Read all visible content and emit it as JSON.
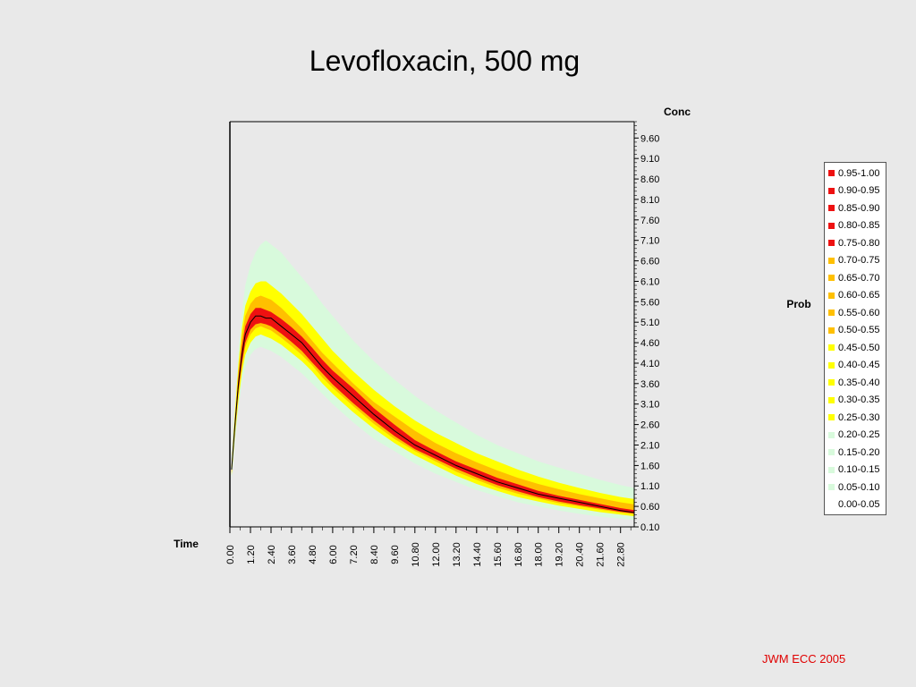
{
  "slide": {
    "title": "Levofloxacin, 500 mg",
    "credit": "JWM ECC 2005"
  },
  "colors": {
    "red": "#ee1111",
    "orange": "#ffc000",
    "yellow": "#ffff00",
    "pale_green": "#d8fadc",
    "white": "#ffffff",
    "median_line": "#000000",
    "credit": "#e00000"
  },
  "chart_data": {
    "type": "heatmap",
    "title": "",
    "xlabel": "Time",
    "ylabel": "Conc",
    "colorbar_label": "Prob",
    "xlim": [
      0,
      23.6
    ],
    "ylim": [
      0.1,
      10.0
    ],
    "x_ticks": [
      "0.00",
      "1.20",
      "2.40",
      "3.60",
      "4.80",
      "6.00",
      "7.20",
      "8.40",
      "9.60",
      "10.80",
      "12.00",
      "13.20",
      "14.40",
      "15.60",
      "16.80",
      "18.00",
      "19.20",
      "20.40",
      "21.60",
      "22.80"
    ],
    "y_ticks": [
      "0.10",
      "0.60",
      "1.10",
      "1.60",
      "2.10",
      "2.60",
      "3.10",
      "3.60",
      "4.10",
      "4.60",
      "5.10",
      "5.60",
      "6.10",
      "6.60",
      "7.10",
      "7.60",
      "8.10",
      "8.60",
      "9.10",
      "9.60"
    ],
    "legend": [
      {
        "label": "0.95-1.00",
        "color": "#ee1111"
      },
      {
        "label": "0.90-0.95",
        "color": "#ee1111"
      },
      {
        "label": "0.85-0.90",
        "color": "#ee1111"
      },
      {
        "label": "0.80-0.85",
        "color": "#ee1111"
      },
      {
        "label": "0.75-0.80",
        "color": "#ee1111"
      },
      {
        "label": "0.70-0.75",
        "color": "#ffc000"
      },
      {
        "label": "0.65-0.70",
        "color": "#ffc000"
      },
      {
        "label": "0.60-0.65",
        "color": "#ffc000"
      },
      {
        "label": "0.55-0.60",
        "color": "#ffc000"
      },
      {
        "label": "0.50-0.55",
        "color": "#ffc000"
      },
      {
        "label": "0.45-0.50",
        "color": "#ffff00"
      },
      {
        "label": "0.40-0.45",
        "color": "#ffff00"
      },
      {
        "label": "0.35-0.40",
        "color": "#ffff00"
      },
      {
        "label": "0.30-0.35",
        "color": "#ffff00"
      },
      {
        "label": "0.25-0.30",
        "color": "#ffff00"
      },
      {
        "label": "0.20-0.25",
        "color": "#d8fadc"
      },
      {
        "label": "0.15-0.20",
        "color": "#d8fadc"
      },
      {
        "label": "0.10-0.15",
        "color": "#d8fadc"
      },
      {
        "label": "0.05-0.10",
        "color": "#d8fadc"
      },
      {
        "label": "0.00-0.05",
        "color": "#ffffff"
      }
    ],
    "median_curve": {
      "x": [
        0.1,
        0.3,
        0.5,
        0.7,
        0.9,
        1.2,
        1.5,
        1.8,
        2.1,
        2.4,
        3.0,
        3.6,
        4.2,
        4.8,
        5.4,
        6.0,
        7.2,
        8.4,
        9.6,
        10.8,
        12.0,
        13.2,
        14.4,
        15.6,
        16.8,
        18.0,
        19.2,
        20.4,
        21.6,
        22.8,
        23.6
      ],
      "y": [
        1.5,
        2.6,
        3.6,
        4.3,
        4.8,
        5.1,
        5.25,
        5.25,
        5.2,
        5.2,
        5.0,
        4.8,
        4.6,
        4.3,
        4.0,
        3.75,
        3.3,
        2.85,
        2.45,
        2.1,
        1.85,
        1.6,
        1.4,
        1.2,
        1.05,
        0.9,
        0.8,
        0.7,
        0.6,
        0.5,
        0.45
      ]
    },
    "probability_bands": [
      {
        "probability": "0.05-0.25",
        "color": "#d8fadc",
        "lower": [
          1.25,
          2.2,
          3.0,
          3.6,
          4.0,
          4.3,
          4.45,
          4.5,
          4.45,
          4.4,
          4.25,
          4.05,
          3.85,
          3.6,
          3.35,
          3.1,
          2.65,
          2.25,
          1.95,
          1.65,
          1.4,
          1.2,
          1.0,
          0.85,
          0.7,
          0.6,
          0.5,
          0.42,
          0.35,
          0.3,
          0.27
        ],
        "upper": [
          1.75,
          3.1,
          4.4,
          5.3,
          6.0,
          6.5,
          6.8,
          7.0,
          7.1,
          7.0,
          6.8,
          6.5,
          6.2,
          5.9,
          5.55,
          5.25,
          4.65,
          4.15,
          3.7,
          3.3,
          2.95,
          2.65,
          2.35,
          2.1,
          1.9,
          1.7,
          1.55,
          1.4,
          1.25,
          1.12,
          1.05
        ]
      },
      {
        "probability": "0.25-0.50",
        "color": "#ffff00",
        "lower": [
          1.35,
          2.35,
          3.2,
          3.85,
          4.3,
          4.6,
          4.75,
          4.8,
          4.75,
          4.7,
          4.55,
          4.35,
          4.15,
          3.9,
          3.6,
          3.35,
          2.9,
          2.5,
          2.15,
          1.85,
          1.6,
          1.35,
          1.15,
          0.98,
          0.83,
          0.72,
          0.62,
          0.54,
          0.46,
          0.4,
          0.36
        ],
        "upper": [
          1.65,
          2.9,
          4.1,
          4.95,
          5.5,
          5.85,
          6.05,
          6.1,
          6.1,
          6.0,
          5.8,
          5.55,
          5.3,
          5.0,
          4.7,
          4.4,
          3.9,
          3.45,
          3.05,
          2.7,
          2.4,
          2.15,
          1.9,
          1.7,
          1.5,
          1.33,
          1.18,
          1.05,
          0.93,
          0.83,
          0.78
        ]
      },
      {
        "probability": "0.50-0.75",
        "color": "#ffc000",
        "lower": [
          1.4,
          2.45,
          3.35,
          4.0,
          4.5,
          4.8,
          4.95,
          5.0,
          4.95,
          4.9,
          4.72,
          4.52,
          4.3,
          4.05,
          3.75,
          3.5,
          3.05,
          2.62,
          2.25,
          1.95,
          1.7,
          1.45,
          1.25,
          1.06,
          0.91,
          0.79,
          0.68,
          0.6,
          0.52,
          0.45,
          0.41
        ],
        "upper": [
          1.6,
          2.8,
          3.95,
          4.75,
          5.25,
          5.55,
          5.7,
          5.75,
          5.7,
          5.65,
          5.45,
          5.2,
          4.95,
          4.65,
          4.35,
          4.1,
          3.6,
          3.15,
          2.8,
          2.45,
          2.15,
          1.9,
          1.68,
          1.48,
          1.3,
          1.15,
          1.02,
          0.9,
          0.8,
          0.7,
          0.65
        ]
      },
      {
        "probability": "0.75-1.00",
        "color": "#ee1111",
        "lower": [
          1.45,
          2.5,
          3.45,
          4.1,
          4.6,
          4.92,
          5.05,
          5.08,
          5.05,
          5.0,
          4.82,
          4.62,
          4.4,
          4.12,
          3.85,
          3.58,
          3.12,
          2.7,
          2.32,
          2.0,
          1.76,
          1.52,
          1.31,
          1.12,
          0.97,
          0.83,
          0.72,
          0.63,
          0.55,
          0.47,
          0.43
        ],
        "upper": [
          1.55,
          2.7,
          3.75,
          4.5,
          5.0,
          5.3,
          5.45,
          5.45,
          5.4,
          5.35,
          5.18,
          4.98,
          4.75,
          4.48,
          4.18,
          3.92,
          3.48,
          3.0,
          2.6,
          2.22,
          1.95,
          1.7,
          1.5,
          1.3,
          1.14,
          0.98,
          0.86,
          0.76,
          0.66,
          0.56,
          0.51
        ]
      }
    ],
    "grid": false,
    "legend_position": "right"
  }
}
